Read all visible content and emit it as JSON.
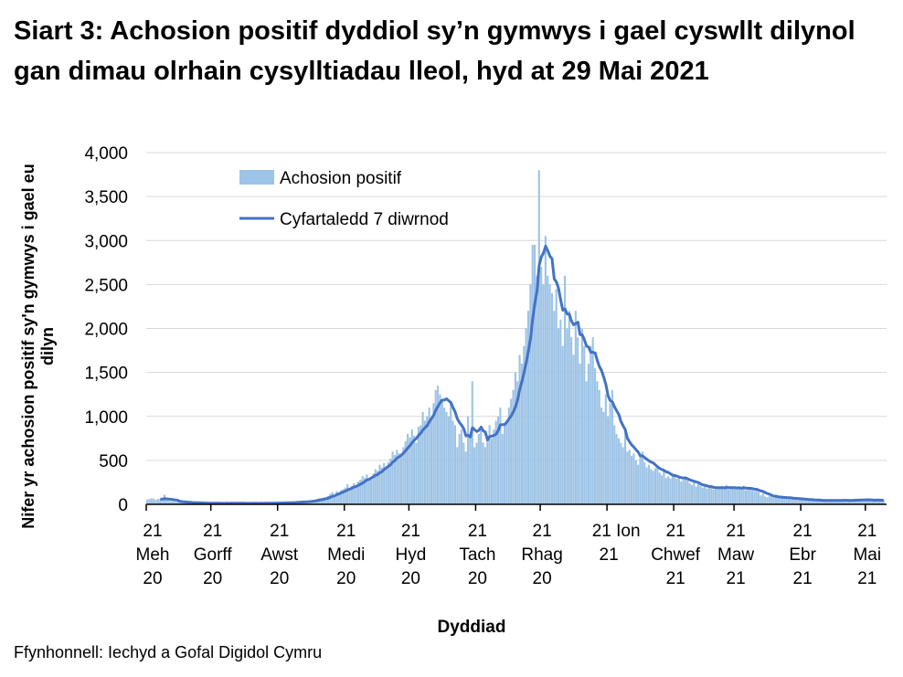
{
  "chart_data": {
    "type": "bar+line",
    "title": "Siart 3: Achosion positif dyddiol sy’n gymwys i gael cyswllt dilynol gan dimau olrhain cysylltiadau lleol, hyd at 29 Mai 2021",
    "xlabel": "Dyddiad",
    "ylabel": "Nifer yr achosion positif sy'n gymwys i gael eu dilyn",
    "ylim": [
      0,
      4000
    ],
    "yticks": [
      "0",
      "500",
      "1,000",
      "1,500",
      "2,000",
      "2,500",
      "3,000",
      "3,500",
      "4,000"
    ],
    "grid": true,
    "legend_position": "top-left",
    "x_start": "2020-06-21",
    "x_end": "2021-05-29",
    "xticks": [
      {
        "date": "2020-06-21",
        "lines": [
          "21",
          "Meh",
          "20"
        ]
      },
      {
        "date": "2020-07-21",
        "lines": [
          "21",
          "Gorff",
          "20"
        ]
      },
      {
        "date": "2020-08-21",
        "lines": [
          "21",
          "Awst",
          "20"
        ]
      },
      {
        "date": "2020-09-21",
        "lines": [
          "21",
          "Medi",
          "20"
        ]
      },
      {
        "date": "2020-10-21",
        "lines": [
          "21",
          "Hyd",
          "20"
        ]
      },
      {
        "date": "2020-11-21",
        "lines": [
          "21",
          "Tach",
          "20"
        ]
      },
      {
        "date": "2020-12-21",
        "lines": [
          "21",
          "Rhag",
          "20"
        ]
      },
      {
        "date": "2021-01-21",
        "lines": [
          "21 Ion",
          "21",
          ""
        ]
      },
      {
        "date": "2021-02-21",
        "lines": [
          "21",
          "Chwef",
          "21"
        ]
      },
      {
        "date": "2021-03-21",
        "lines": [
          "21",
          "Maw",
          "21"
        ]
      },
      {
        "date": "2021-04-21",
        "lines": [
          "21",
          "Ebr",
          "21"
        ]
      },
      {
        "date": "2021-05-21",
        "lines": [
          "21",
          "Mai",
          "21"
        ]
      }
    ],
    "series": [
      {
        "name": "Achosion positif",
        "type": "bar",
        "color": "#9dc3e6",
        "values": [
          55,
          60,
          70,
          65,
          50,
          62,
          58,
          45,
          110,
          50,
          40,
          35,
          38,
          30,
          28,
          25,
          22,
          20,
          24,
          18,
          20,
          16,
          15,
          14,
          18,
          12,
          15,
          13,
          12,
          14,
          10,
          12,
          13,
          11,
          12,
          11,
          13,
          12,
          10,
          28,
          12,
          11,
          12,
          10,
          13,
          11,
          12,
          14,
          10,
          12,
          13,
          11,
          10,
          14,
          12,
          13,
          14,
          16,
          13,
          15,
          17,
          12,
          16,
          18,
          22,
          20,
          24,
          19,
          21,
          25,
          28,
          32,
          30,
          35,
          26,
          38,
          40,
          45,
          55,
          62,
          70,
          58,
          75,
          80,
          95,
          120,
          140,
          110,
          150,
          135,
          160,
          170,
          190,
          230,
          180,
          210,
          240,
          200,
          260,
          280,
          320,
          300,
          340,
          290,
          310,
          350,
          400,
          380,
          450,
          420,
          470,
          430,
          480,
          520,
          600,
          560,
          620,
          580,
          550,
          650,
          720,
          800,
          760,
          850,
          780,
          700,
          880,
          900,
          1050,
          950,
          1000,
          1100,
          950,
          1150,
          1300,
          1350,
          1250,
          1200,
          1100,
          1050,
          1000,
          1150,
          950,
          900,
          650,
          800,
          850,
          700,
          600,
          1000,
          750,
          1400,
          650,
          700,
          800,
          850,
          700,
          650,
          780,
          900,
          750,
          850,
          950,
          1000,
          1100,
          800,
          900,
          950,
          1100,
          1200,
          1300,
          1500,
          1400,
          1700,
          1600,
          1800,
          2000,
          2200,
          2500,
          2950,
          2950,
          2600,
          3800,
          2700,
          2500,
          3050,
          2600,
          2500,
          2400,
          2200,
          2450,
          2000,
          2100,
          1800,
          2600,
          2000,
          2200,
          1900,
          1700,
          2200,
          1900,
          1600,
          2000,
          1800,
          1400,
          1600,
          1800,
          1900,
          1550,
          1400,
          1300,
          1100,
          1050,
          1250,
          1000,
          1150,
          1300,
          900,
          800,
          750,
          700,
          650,
          850,
          600,
          620,
          550,
          580,
          500,
          450,
          560,
          600,
          480,
          420,
          450,
          400,
          380,
          410,
          440,
          360,
          330,
          380,
          300,
          320,
          290,
          350,
          320,
          290,
          300,
          260,
          280,
          310,
          270,
          240,
          220,
          260,
          200,
          230,
          210,
          190,
          200,
          180,
          210,
          190,
          170,
          200,
          180,
          190,
          200,
          180,
          220,
          170,
          190,
          180,
          190,
          170,
          200,
          180,
          210,
          160,
          170,
          180,
          160,
          150,
          170,
          140,
          100,
          130,
          90,
          80,
          95,
          85,
          75,
          90,
          80,
          75,
          70,
          80,
          65,
          70,
          75,
          60,
          60,
          55,
          65,
          50,
          55,
          60,
          50,
          48,
          45,
          50,
          42,
          46,
          44,
          40,
          45,
          48,
          42,
          46,
          50,
          44,
          40,
          45,
          50,
          48,
          42,
          46,
          44,
          45,
          50,
          55,
          60,
          48,
          52,
          45,
          50,
          45,
          48,
          42,
          60,
          44,
          40,
          50
        ]
      },
      {
        "name": "Cyfartaledd 7 diwrnod",
        "type": "line",
        "color": "#4472c4",
        "window_days": 7
      }
    ],
    "source": "Ffynhonnell: Iechyd a Gofal Digidol Cymru"
  }
}
